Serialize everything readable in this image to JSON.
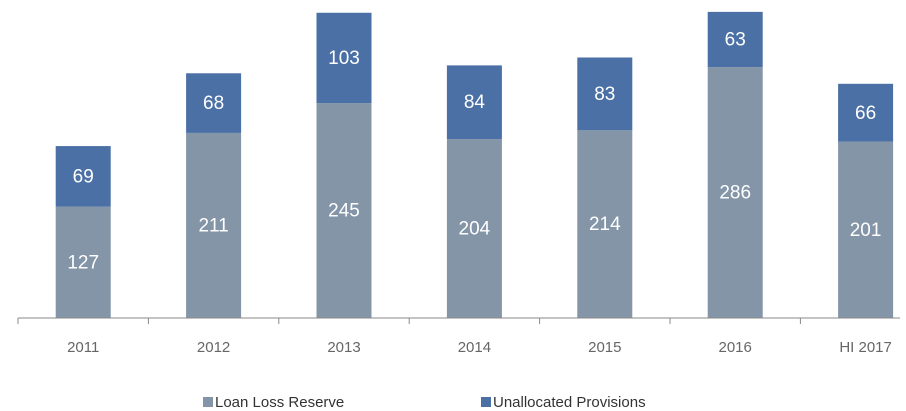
{
  "chart_data": {
    "type": "stacked_bar",
    "categories": [
      "2011",
      "2012",
      "2013",
      "2014",
      "2015",
      "2016",
      "HI 2017"
    ],
    "series": [
      {
        "name": "Loan Loss Reserve",
        "color": "#8395a7",
        "values": [
          127,
          211,
          245,
          204,
          214,
          286,
          201
        ]
      },
      {
        "name": "Unallocated Provisions",
        "color": "#4b70a5",
        "values": [
          69,
          68,
          103,
          84,
          83,
          63,
          66
        ]
      }
    ],
    "ylim": [
      0,
      350
    ]
  }
}
